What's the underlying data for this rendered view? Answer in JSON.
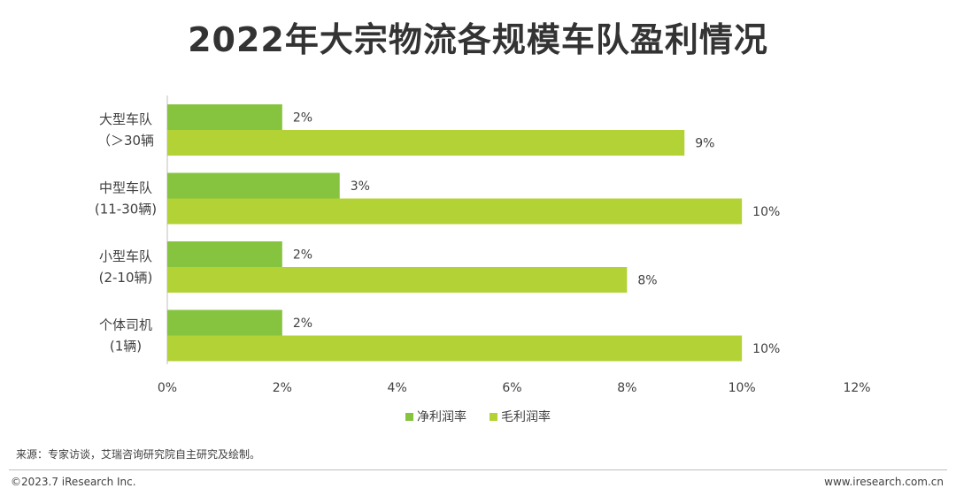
{
  "title": "2022年大宗物流各规模车队盈利情况",
  "source": "来源：专家访谈，艾瑞咨询研究院自主研究及绘制。",
  "copyright": "©2023.7 iResearch Inc.",
  "website": "www.iresearch.com.cn",
  "colors": {
    "net": "#86c440",
    "gross": "#b3d235"
  },
  "chart_data": {
    "type": "bar",
    "orientation": "horizontal",
    "categories": [
      [
        "大型车队",
        "（＞30辆"
      ],
      [
        "中型车队",
        "(11-30辆)"
      ],
      [
        "小型车队",
        "(2-10辆)"
      ],
      [
        "个体司机",
        "(1辆)"
      ]
    ],
    "series": [
      {
        "name": "净利润率",
        "values": [
          2,
          3,
          2,
          2
        ]
      },
      {
        "name": "毛利润率",
        "values": [
          9,
          10,
          8,
          10
        ]
      }
    ],
    "value_suffix": "%",
    "xlim": [
      0,
      12
    ],
    "xticks": [
      "0%",
      "2%",
      "4%",
      "6%",
      "8%",
      "10%",
      "12%"
    ],
    "grid": false,
    "legend_position": "bottom"
  }
}
